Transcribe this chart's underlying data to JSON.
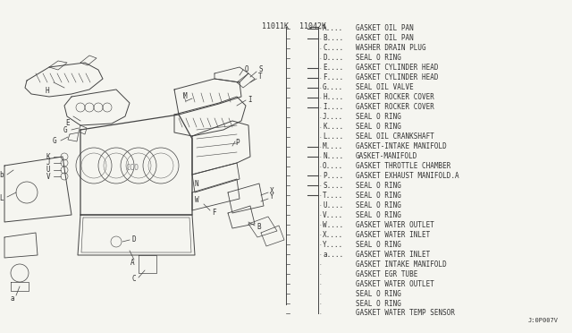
{
  "bg_color": "#f5f5f0",
  "part_number_left": "11011K",
  "part_number_right": "11042K",
  "legend_entries": [
    [
      "A",
      "GASKET OIL PAN",
      true
    ],
    [
      "B",
      "GASKET OIL PAN",
      true
    ],
    [
      "C",
      "WASHER DRAIN PLUG",
      false
    ],
    [
      "D",
      "SEAL O RING",
      false
    ],
    [
      "E",
      "GASKET CYLINDER HEAD",
      true
    ],
    [
      "F",
      "GASKET CYLINDER HEAD",
      true
    ],
    [
      "G",
      "SEAL OIL VALVE",
      true
    ],
    [
      "H",
      "GASKET ROCKER COVER",
      true
    ],
    [
      "I",
      "GASKET ROCKER COVER",
      true
    ],
    [
      "J",
      "SEAL O RING",
      false
    ],
    [
      "K",
      "SEAL O RING",
      false
    ],
    [
      "L",
      "SEAL OIL CRANKSHAFT",
      false
    ],
    [
      "M",
      "GASKET-INTAKE MANIFOLD",
      true
    ],
    [
      "N",
      "GASKET-MANIFOLD",
      true
    ],
    [
      "O",
      "GASKET THROTTLE CHAMBER",
      false
    ],
    [
      "P",
      "GASKET EXHAUST MANIFOLD.A",
      true
    ],
    [
      "S",
      "SEAL O RING",
      true
    ],
    [
      "T",
      "SEAL O RING",
      true
    ],
    [
      "U",
      "SEAL O RING",
      false
    ],
    [
      "V",
      "SEAL O RING",
      false
    ],
    [
      "W",
      "GASKET WATER OUTLET",
      false
    ],
    [
      "X",
      "GASKET WATER INLET",
      false
    ],
    [
      "Y",
      "SEAL O RING",
      false
    ],
    [
      "a",
      "GASKET WATER INLET",
      false
    ],
    [
      "",
      "GASKET INTAKE MANIFOLD",
      false
    ],
    [
      "",
      "GASKET EGR TUBE",
      false
    ],
    [
      "",
      "GASKET WATER OUTLET",
      false
    ],
    [
      "",
      "SEAL O RING",
      false
    ],
    [
      "",
      "SEAL O RING",
      false
    ],
    [
      "",
      "GASKET WATER TEMP SENSOR",
      false
    ]
  ],
  "ticked_letters": [
    "A",
    "B",
    "E",
    "F",
    "G",
    "H",
    "I",
    "M",
    "N",
    "P",
    "S",
    "T"
  ],
  "footer": "J:0P007V",
  "font_color": "#333333",
  "line_color": "#444444"
}
